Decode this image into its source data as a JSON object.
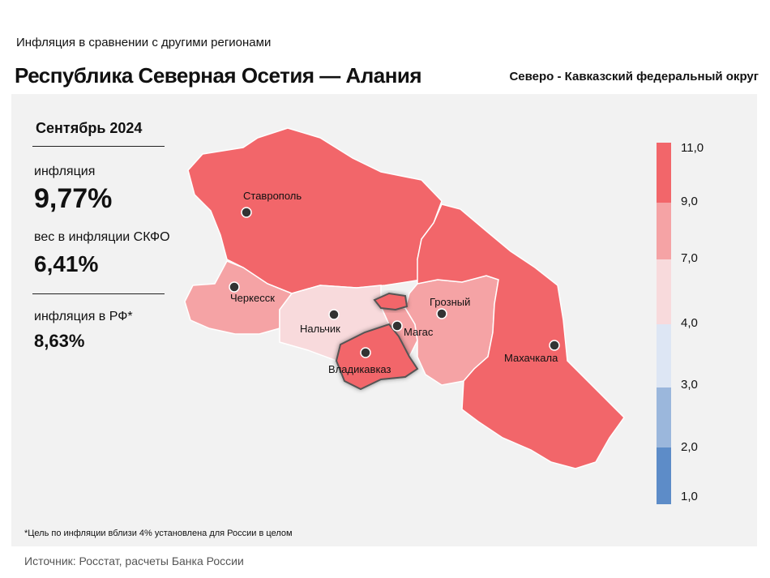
{
  "header": {
    "subtitle": "Инфляция в сравнении с другими регионами",
    "title": "Республика Северная Осетия — Алания",
    "district": "Северо - Кавказский федеральный округ"
  },
  "stats": {
    "period": "Сентябрь 2024",
    "inflation_label": "инфляция",
    "inflation_value": "9,77%",
    "weight_label": "вес в инфляции СКФО",
    "weight_value": "6,41%",
    "rf_label": "инфляция в РФ*",
    "rf_value": "8,63%"
  },
  "cities": [
    {
      "name": "Ставрополь"
    },
    {
      "name": "Черкесск"
    },
    {
      "name": "Нальчик"
    },
    {
      "name": "Владикавказ"
    },
    {
      "name": "Магас"
    },
    {
      "name": "Грозный"
    },
    {
      "name": "Махачкала"
    }
  ],
  "legend": {
    "ticks": [
      "11,0",
      "9,0",
      "7,0",
      "4,0",
      "3,0",
      "2,0",
      "1,0"
    ],
    "colors": [
      "#f2666a",
      "#f5a3a5",
      "#f8dadc",
      "#dde6f4",
      "#9bb7dc",
      "#5d8cc8"
    ]
  },
  "colors": {
    "high": "#f2666a",
    "mid_high": "#f5a3a5",
    "mid_low": "#f8dadc",
    "highlight_border": "#555555"
  },
  "footer": {
    "note": "*Цель по инфляции вблизи 4% установлена для России в целом",
    "source": "Источник: Росстат, расчеты Банка России"
  }
}
